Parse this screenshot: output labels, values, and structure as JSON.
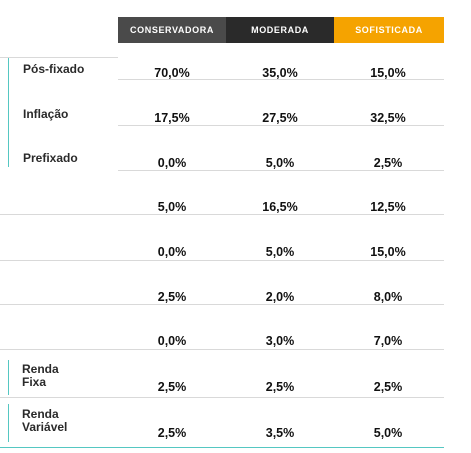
{
  "columns": [
    "CONSERVADORA",
    "MODERADA",
    "SOFISTICADA"
  ],
  "column_colors": [
    "#4a4a4a",
    "#2a2a2a",
    "#f5a300"
  ],
  "row_labels": {
    "r0": "Pós-fixado",
    "r1": "Inflação",
    "r2": "Prefixado",
    "r7a": "Renda",
    "r7b": "Fixa",
    "r8a": "Renda",
    "r8b": "Variável"
  },
  "rows": [
    [
      "70,0%",
      "35,0%",
      "15,0%"
    ],
    [
      "17,5%",
      "27,5%",
      "32,5%"
    ],
    [
      "0,0%",
      "5,0%",
      "2,5%"
    ],
    [
      "5,0%",
      "16,5%",
      "12,5%"
    ],
    [
      "0,0%",
      "5,0%",
      "15,0%"
    ],
    [
      "2,5%",
      "2,0%",
      "8,0%"
    ],
    [
      "0,0%",
      "3,0%",
      "7,0%"
    ],
    [
      "2,5%",
      "2,5%",
      "2,5%"
    ],
    [
      "2,5%",
      "3,5%",
      "5,0%"
    ]
  ]
}
